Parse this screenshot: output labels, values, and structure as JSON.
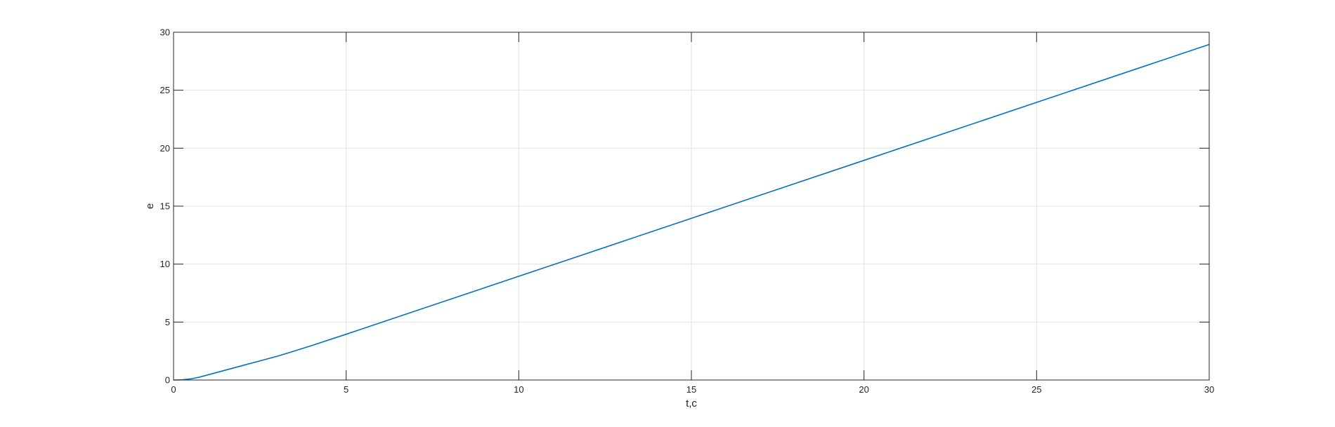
{
  "chart_data": {
    "type": "line",
    "title": "",
    "xlabel": "t,c",
    "ylabel": "e",
    "xlim": [
      0,
      30
    ],
    "ylim": [
      0,
      30
    ],
    "xticks": [
      0,
      5,
      10,
      15,
      20,
      25,
      30
    ],
    "yticks": [
      0,
      5,
      10,
      15,
      20,
      25,
      30
    ],
    "grid": true,
    "series": [
      {
        "color": "#0072bd",
        "x": [
          0,
          0.25,
          0.5,
          0.75,
          1,
          1.5,
          2,
          2.5,
          3,
          3.5,
          4,
          5,
          6,
          8,
          10,
          12,
          15,
          18,
          20,
          22,
          25,
          28,
          30
        ],
        "y": [
          0,
          0.02,
          0.1,
          0.25,
          0.45,
          0.85,
          1.25,
          1.65,
          2.05,
          2.5,
          2.97,
          3.95,
          4.95,
          6.95,
          8.95,
          10.95,
          13.95,
          16.95,
          18.95,
          20.95,
          23.95,
          26.95,
          28.95
        ]
      }
    ]
  }
}
